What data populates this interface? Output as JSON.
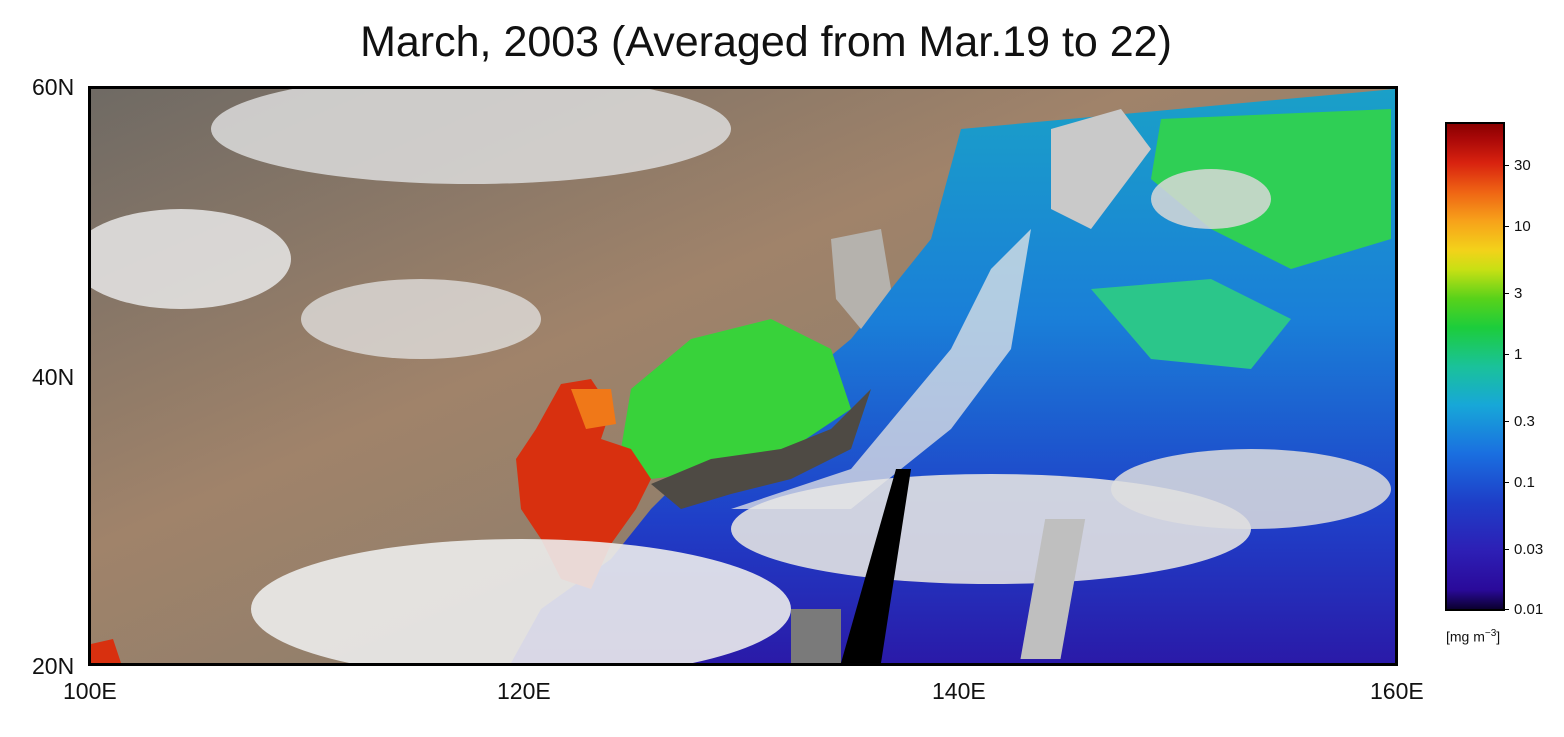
{
  "title": "March, 2003 (Averaged from Mar.19 to 22)",
  "map": {
    "lat_labels": [
      "60N",
      "40N",
      "20N"
    ],
    "lon_labels": [
      "100E",
      "120E",
      "140E",
      "160E"
    ],
    "extent": {
      "lon": [
        100,
        160
      ],
      "lat": [
        20,
        60
      ]
    }
  },
  "colorbar": {
    "labels": [
      "30",
      "10",
      "3",
      "1",
      "0.3",
      "0.1",
      "0.03",
      "0.01"
    ],
    "unit_prefix": "[mg m",
    "unit_sup": "−3",
    "unit_suffix": "]",
    "scale": "log"
  },
  "colors": {
    "land": "#9c8570",
    "cloud": "#e6e6e6",
    "ocean_low": "#1f3fc8",
    "ocean_mid": "#1ac060",
    "ocean_high": "#d8300f",
    "no_data": "#000000"
  }
}
